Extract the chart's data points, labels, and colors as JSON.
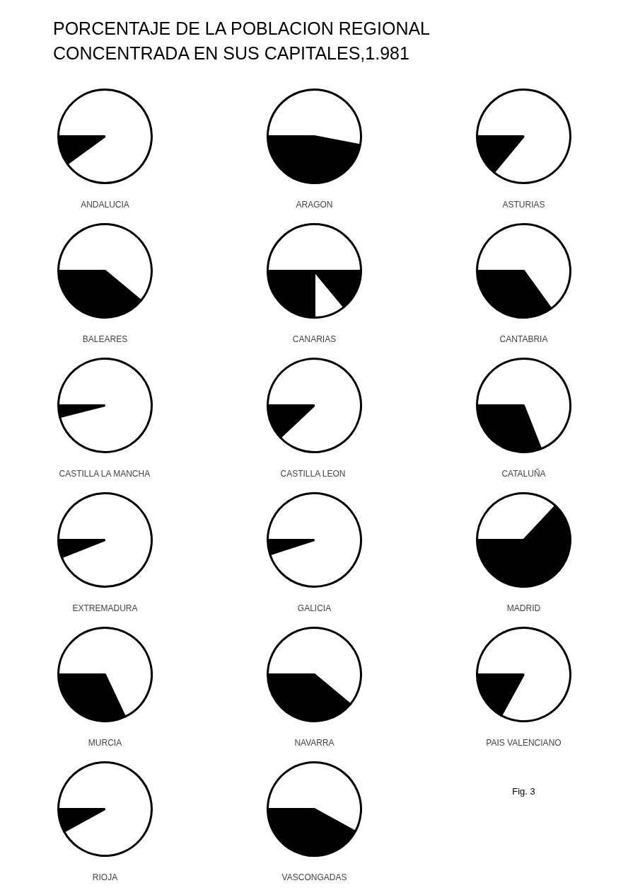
{
  "chart_data": [
    {
      "type": "other",
      "title": "PORCENTAJE DE LA POBLACION REGIONAL CONCENTRADA EN SUS CAPITALES,1.981",
      "annotations": [
        "Fig. 3"
      ]
    },
    {
      "type": "pie",
      "title": "ANDALUCIA",
      "categories": [
        null,
        null
      ],
      "values": [
        10,
        90
      ],
      "colors": [
        "#000000",
        "#ffffff"
      ]
    },
    {
      "type": "pie",
      "title": "ARAGON",
      "categories": [
        null,
        null
      ],
      "values": [
        47,
        53
      ],
      "colors": [
        "#000000",
        "#ffffff"
      ]
    },
    {
      "type": "pie",
      "title": "ASTURIAS",
      "categories": [
        null,
        null
      ],
      "values": [
        14,
        86
      ],
      "colors": [
        "#000000",
        "#ffffff"
      ]
    },
    {
      "type": "pie",
      "title": "BALEARES",
      "categories": [
        null,
        null
      ],
      "values": [
        39,
        61
      ],
      "colors": [
        "#000000",
        "#ffffff"
      ]
    },
    {
      "type": "pie",
      "title": "CANARIAS",
      "categories": [
        null,
        null,
        null,
        null
      ],
      "values": [
        25,
        11,
        14,
        50
      ],
      "colors": [
        "#000000",
        "#ffffff",
        "#000000",
        "#ffffff"
      ]
    },
    {
      "type": "pie",
      "title": "CANTABRIA",
      "categories": [
        null,
        null
      ],
      "values": [
        35,
        65
      ],
      "colors": [
        "#000000",
        "#ffffff"
      ]
    },
    {
      "type": "pie",
      "title": "CASTILLA LA MANCHA",
      "categories": [
        null,
        null
      ],
      "values": [
        4,
        96
      ],
      "colors": [
        "#000000",
        "#ffffff"
      ]
    },
    {
      "type": "pie",
      "title": "CASTILLA  LEON",
      "categories": [
        null,
        null
      ],
      "values": [
        12,
        88
      ],
      "colors": [
        "#000000",
        "#ffffff"
      ]
    },
    {
      "type": "pie",
      "title": "CATALUÑA",
      "categories": [
        null,
        null
      ],
      "values": [
        31,
        69
      ],
      "colors": [
        "#000000",
        "#ffffff"
      ]
    },
    {
      "type": "pie",
      "title": "EXTREMADURA",
      "categories": [
        null,
        null
      ],
      "values": [
        6,
        94
      ],
      "colors": [
        "#000000",
        "#ffffff"
      ]
    },
    {
      "type": "pie",
      "title": "GALICIA",
      "categories": [
        null,
        null
      ],
      "values": [
        5,
        95
      ],
      "colors": [
        "#000000",
        "#ffffff"
      ]
    },
    {
      "type": "pie",
      "title": "MADRID",
      "categories": [
        null,
        null
      ],
      "values": [
        63,
        37
      ],
      "colors": [
        "#000000",
        "#ffffff"
      ]
    },
    {
      "type": "pie",
      "title": "MURCIA",
      "categories": [
        null,
        null
      ],
      "values": [
        32,
        68
      ],
      "colors": [
        "#000000",
        "#ffffff"
      ]
    },
    {
      "type": "pie",
      "title": "NAVARRA",
      "categories": [
        null,
        null
      ],
      "values": [
        39,
        61
      ],
      "colors": [
        "#000000",
        "#ffffff"
      ]
    },
    {
      "type": "pie",
      "title": "PAIS VALENCIANO",
      "categories": [
        null,
        null
      ],
      "values": [
        17,
        83
      ],
      "colors": [
        "#000000",
        "#ffffff"
      ]
    },
    {
      "type": "pie",
      "title": "RIOJA",
      "categories": [
        null,
        null
      ],
      "values": [
        8,
        92
      ],
      "colors": [
        "#000000",
        "#ffffff"
      ]
    },
    {
      "type": "pie",
      "title": "VASCONGADAS",
      "categories": [
        null,
        null
      ],
      "values": [
        42,
        58
      ],
      "colors": [
        "#000000",
        "#ffffff"
      ]
    }
  ]
}
